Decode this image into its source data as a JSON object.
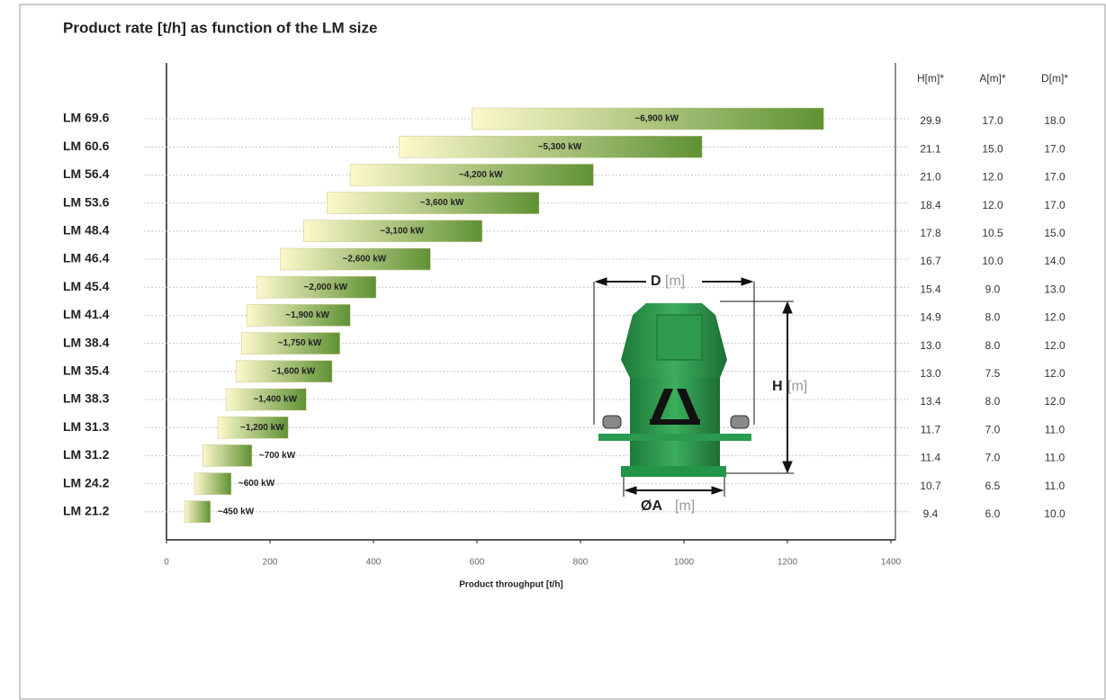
{
  "chart_data": {
    "type": "floating-bar",
    "title": "Product rate [t/h] as function of the LM size",
    "x_label": "Product throughput [t/h]",
    "categories": [
      "LM 69.6",
      "LM 60.6",
      "LM 56.4",
      "LM 53.6",
      "LM 48.4",
      "LM 46.4",
      "LM 45.4",
      "LM 41.4",
      "LM 38.4",
      "LM 35.4",
      "LM 38.3",
      "LM 31.3",
      "LM 31.2",
      "LM 24.2",
      "LM 21.2"
    ],
    "values": [
      [
        590,
        1270
      ],
      [
        450,
        1035
      ],
      [
        355,
        825
      ],
      [
        310,
        720
      ],
      [
        265,
        610
      ],
      [
        220,
        510
      ],
      [
        175,
        405
      ],
      [
        155,
        355
      ],
      [
        145,
        335
      ],
      [
        135,
        320
      ],
      [
        115,
        270
      ],
      [
        100,
        235
      ],
      [
        70,
        165
      ],
      [
        55,
        125
      ],
      [
        35,
        85
      ]
    ],
    "annotations": [
      "~6,900 kW",
      "~5,300 kW",
      "~4,200 kW",
      "~3,600 kW",
      "~3,100 kW",
      "~2,600 kW",
      "~2,000 kW",
      "~1,900 kW",
      "~1,750 kW",
      "~1,600 kW",
      "~1,400 kW",
      "~1,200 kW",
      "~700 kW",
      "~600 kW",
      "~450 kW"
    ],
    "colors": [
      "#fdf9cc",
      "#5f9234"
    ],
    "xlim": [
      0,
      1400
    ],
    "xticks": [
      0,
      200,
      400,
      600,
      800,
      1000,
      1200,
      1400
    ],
    "grid": true,
    "table": {
      "columns": [
        "H[m]*",
        "A[m]*",
        "D[m]*"
      ],
      "rows": [
        [
          "29.9",
          "17.0",
          "18.0"
        ],
        [
          "21.1",
          "15.0",
          "17.0"
        ],
        [
          "21.0",
          "12.0",
          "17.0"
        ],
        [
          "18.4",
          "12.0",
          "17.0"
        ],
        [
          "17.8",
          "10.5",
          "15.0"
        ],
        [
          "16.7",
          "10.0",
          "14.0"
        ],
        [
          "15.4",
          "9.0",
          "13.0"
        ],
        [
          "14.9",
          "8.0",
          "12.0"
        ],
        [
          "13.0",
          "8.0",
          "12.0"
        ],
        [
          "13.0",
          "7.5",
          "12.0"
        ],
        [
          "13.4",
          "8.0",
          "12.0"
        ],
        [
          "11.7",
          "7.0",
          "11.0"
        ],
        [
          "11.4",
          "7.0",
          "11.0"
        ],
        [
          "10.7",
          "6.5",
          "11.0"
        ],
        [
          "9.4",
          "6.0",
          "10.0"
        ]
      ]
    }
  },
  "diagram": {
    "labels": [
      {
        "symbol": "D",
        "unit": "[m]"
      },
      {
        "symbol": "H",
        "unit": "[m]"
      },
      {
        "symbol": "ØA",
        "unit": "[m]"
      }
    ]
  }
}
